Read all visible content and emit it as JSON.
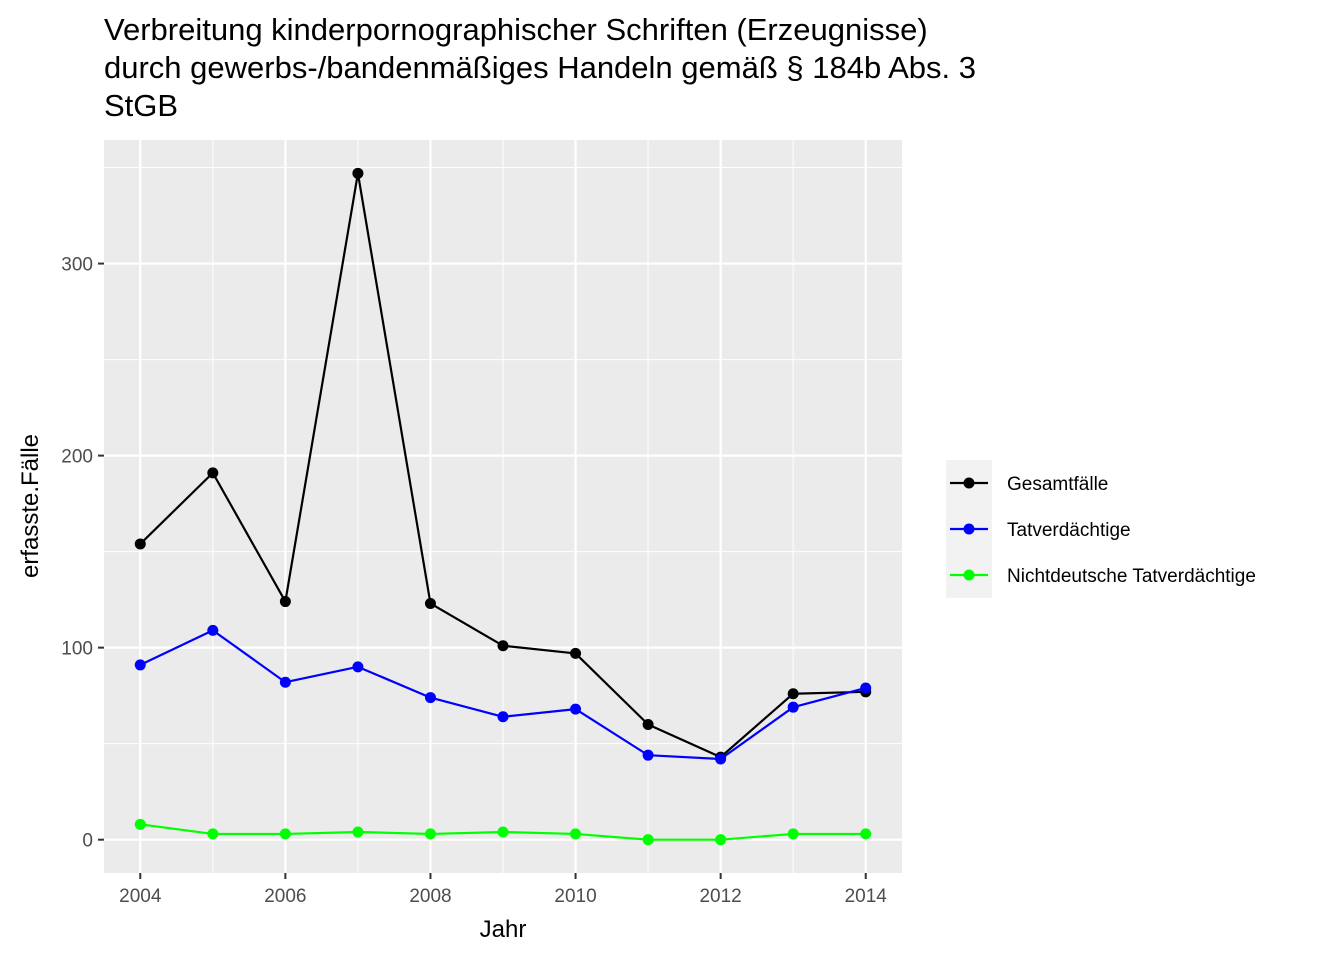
{
  "chart_data": {
    "type": "line",
    "title_lines": [
      "Verbreitung kinderpornographischer Schriften (Erzeugnisse)",
      "durch gewerbs-/bandenmäßiges Handeln gemäß § 184b Abs. 3",
      "StGB"
    ],
    "xlabel": "Jahr",
    "ylabel": "erfasste.Fälle",
    "x": [
      2004,
      2005,
      2006,
      2007,
      2008,
      2009,
      2010,
      2011,
      2012,
      2013,
      2014
    ],
    "xlim": [
      2003.5,
      2014.5
    ],
    "ylim": [
      -17.35,
      364.35
    ],
    "x_ticks": [
      2004,
      2006,
      2008,
      2010,
      2012,
      2014
    ],
    "y_ticks": [
      0,
      100,
      200,
      300
    ],
    "grid": true,
    "legend_position": "right",
    "series": [
      {
        "name": "Gesamtfälle",
        "color": "#000000",
        "values": [
          154,
          191,
          124,
          347,
          123,
          101,
          97,
          60,
          43,
          76,
          77
        ]
      },
      {
        "name": "Tatverdächtige",
        "color": "#0000ff",
        "values": [
          91,
          109,
          82,
          90,
          74,
          64,
          68,
          44,
          42,
          69,
          79
        ]
      },
      {
        "name": "Nichtdeutsche Tatverdächtige",
        "color": "#00ff00",
        "values": [
          8,
          3,
          3,
          4,
          3,
          4,
          3,
          0,
          0,
          3,
          3
        ]
      }
    ]
  }
}
